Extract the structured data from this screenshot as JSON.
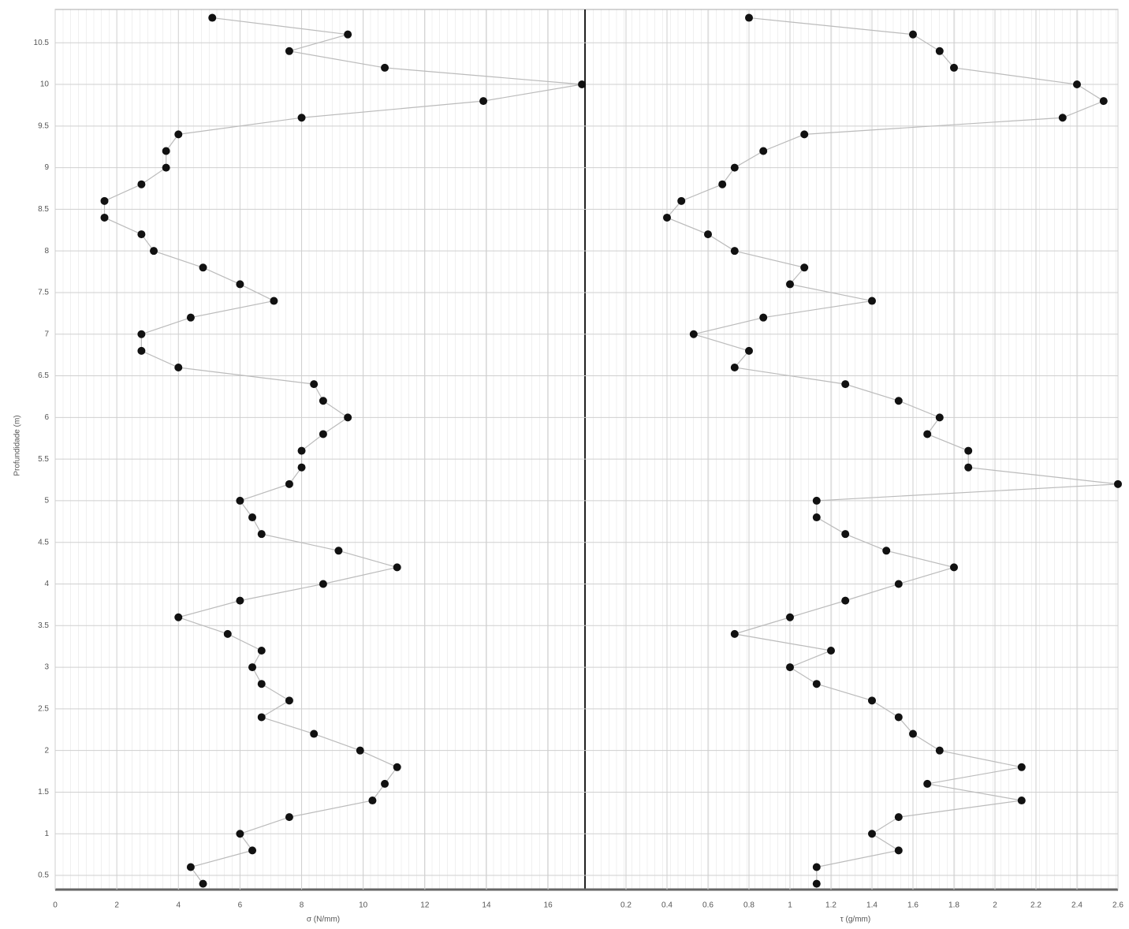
{
  "chart_data": [
    {
      "type": "line",
      "xlabel": "σ (N/mm)",
      "ylabel": "Profundidade (m)",
      "color": "#111111",
      "line_color": "#bbbbbb",
      "x": [
        5.1,
        9.5,
        7.6,
        10.7,
        17.1,
        13.9,
        8.0,
        4.0,
        3.6,
        3.6,
        2.8,
        1.6,
        1.6,
        2.8,
        3.2,
        4.8,
        6.0,
        7.1,
        4.4,
        2.8,
        2.8,
        4.0,
        8.4,
        8.7,
        9.5,
        8.7,
        8.0,
        8.0,
        7.6,
        6.0,
        6.4,
        6.7,
        9.2,
        11.1,
        8.7,
        6.0,
        4.0,
        5.6,
        6.7,
        6.4,
        6.7,
        7.6,
        6.7,
        8.4,
        9.9,
        11.1,
        10.7,
        10.3,
        7.6,
        6.0,
        6.4,
        4.4,
        4.8
      ],
      "y": [
        10.8,
        10.6,
        10.4,
        10.2,
        10.0,
        9.8,
        9.6,
        9.4,
        9.2,
        9.0,
        8.8,
        8.6,
        8.4,
        8.2,
        8.0,
        7.8,
        7.6,
        7.4,
        7.2,
        7.0,
        6.8,
        6.6,
        6.4,
        6.2,
        6.0,
        5.8,
        5.6,
        5.4,
        5.2,
        5.0,
        4.8,
        4.6,
        4.4,
        4.2,
        4.0,
        3.8,
        3.6,
        3.4,
        3.2,
        3.0,
        2.8,
        2.6,
        2.4,
        2.2,
        2.0,
        1.8,
        1.6,
        1.4,
        1.2,
        1.0,
        0.8,
        0.6,
        0.4
      ],
      "xlim": [
        0,
        17.2
      ],
      "xticks": [
        0,
        2,
        4,
        6,
        8,
        10,
        12,
        14,
        16
      ],
      "ylim": [
        0.33,
        10.9
      ],
      "yticks": [
        0.5,
        1,
        1.5,
        2,
        2.5,
        3,
        3.5,
        4,
        4.5,
        5,
        5.5,
        6,
        6.5,
        7,
        7.5,
        8,
        8.5,
        9,
        9.5,
        10,
        10.5
      ],
      "grid": true
    },
    {
      "type": "line",
      "xlabel": "τ (g/mm)",
      "color": "#111111",
      "line_color": "#bbbbbb",
      "x": [
        0.8,
        1.6,
        1.73,
        1.8,
        2.4,
        2.53,
        2.33,
        1.07,
        0.87,
        0.73,
        0.67,
        0.47,
        0.4,
        0.6,
        0.73,
        1.07,
        1.0,
        1.4,
        0.87,
        0.53,
        0.8,
        0.73,
        1.27,
        1.53,
        1.73,
        1.67,
        1.87,
        1.87,
        2.6,
        1.13,
        1.13,
        1.27,
        1.47,
        1.8,
        1.53,
        1.27,
        1.0,
        0.73,
        1.2,
        1.0,
        1.13,
        1.4,
        1.53,
        1.6,
        1.73,
        2.13,
        1.67,
        2.13,
        1.53,
        1.4,
        1.53,
        1.13,
        1.13
      ],
      "y": [
        10.8,
        10.6,
        10.4,
        10.2,
        10.0,
        9.8,
        9.6,
        9.4,
        9.2,
        9.0,
        8.8,
        8.6,
        8.4,
        8.2,
        8.0,
        7.8,
        7.6,
        7.4,
        7.2,
        7.0,
        6.8,
        6.6,
        6.4,
        6.2,
        6.0,
        5.8,
        5.6,
        5.4,
        5.2,
        5.0,
        4.8,
        4.6,
        4.4,
        4.2,
        4.0,
        3.8,
        3.6,
        3.4,
        3.2,
        3.0,
        2.8,
        2.6,
        2.4,
        2.2,
        2.0,
        1.8,
        1.6,
        1.4,
        1.2,
        1.0,
        0.8,
        0.6,
        0.4
      ],
      "xlim": [
        0,
        2.6
      ],
      "xticks": [
        0.2,
        0.4,
        0.6,
        0.8,
        1,
        1.2,
        1.4,
        1.6,
        1.8,
        2,
        2.2,
        2.4,
        2.6
      ],
      "ylim": [
        0.33,
        10.9
      ],
      "grid": true
    }
  ]
}
